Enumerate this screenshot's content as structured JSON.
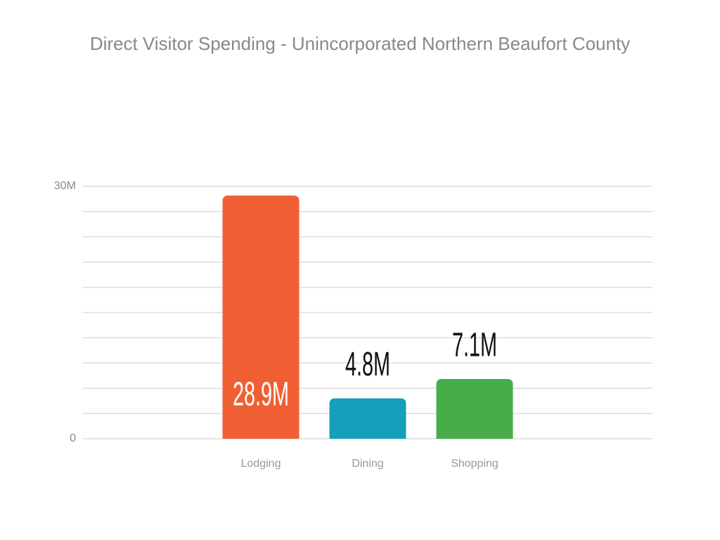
{
  "chart_data": {
    "type": "bar",
    "title": "Direct Visitor Spending - Unincorporated Northern Beaufort County",
    "categories": [
      "Lodging",
      "Dining",
      "Shopping"
    ],
    "values": [
      28900000,
      4800000,
      7100000
    ],
    "value_labels": [
      "28.9M",
      "4.8M",
      "7.1M"
    ],
    "colors": [
      "#f05f33",
      "#149fbb",
      "#48ac4b"
    ],
    "ylim": [
      0,
      30000000
    ],
    "yticks": [
      0,
      {
        "value": 30000000,
        "label": "30M"
      }
    ],
    "grid_lines": [
      3000000,
      6000000,
      9000000,
      12000000,
      15000000,
      18000000,
      21000000,
      24000000,
      27000000
    ],
    "grid": true
  }
}
